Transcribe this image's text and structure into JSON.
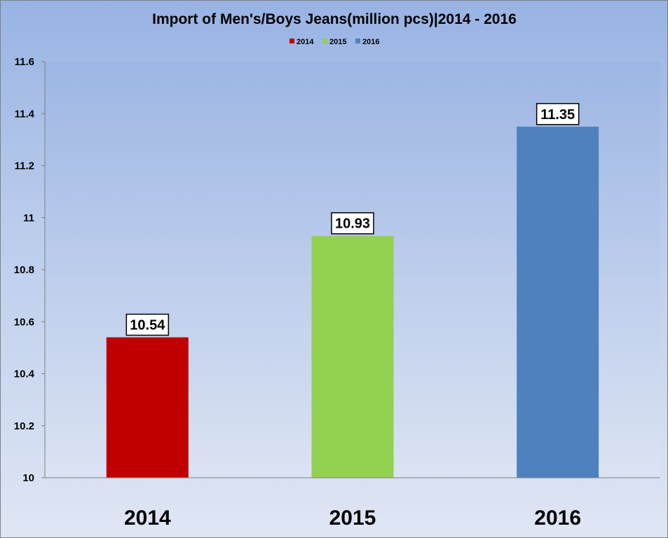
{
  "chart_data": {
    "type": "bar",
    "title": "Import of Men's/Boys Jeans(million pcs)|2014 - 2016",
    "categories": [
      "2014",
      "2015",
      "2016"
    ],
    "values": [
      10.54,
      10.93,
      11.35
    ],
    "data_labels": [
      "10.54",
      "10.93",
      "11.35"
    ],
    "colors": [
      "#c00000",
      "#92d050",
      "#4f81bd"
    ],
    "legend": [
      "2014",
      "2015",
      "2016"
    ],
    "legend_position": "top-center",
    "ylim": [
      10,
      11.6
    ],
    "yticks": [
      10,
      10.2,
      10.4,
      10.6,
      10.8,
      11,
      11.2,
      11.4,
      11.6
    ],
    "ytick_labels": [
      "10",
      "10.2",
      "10.4",
      "10.6",
      "10.8",
      "11",
      "11.2",
      "11.4",
      "11.6"
    ],
    "xlabel": "",
    "ylabel": "",
    "grid": false
  }
}
